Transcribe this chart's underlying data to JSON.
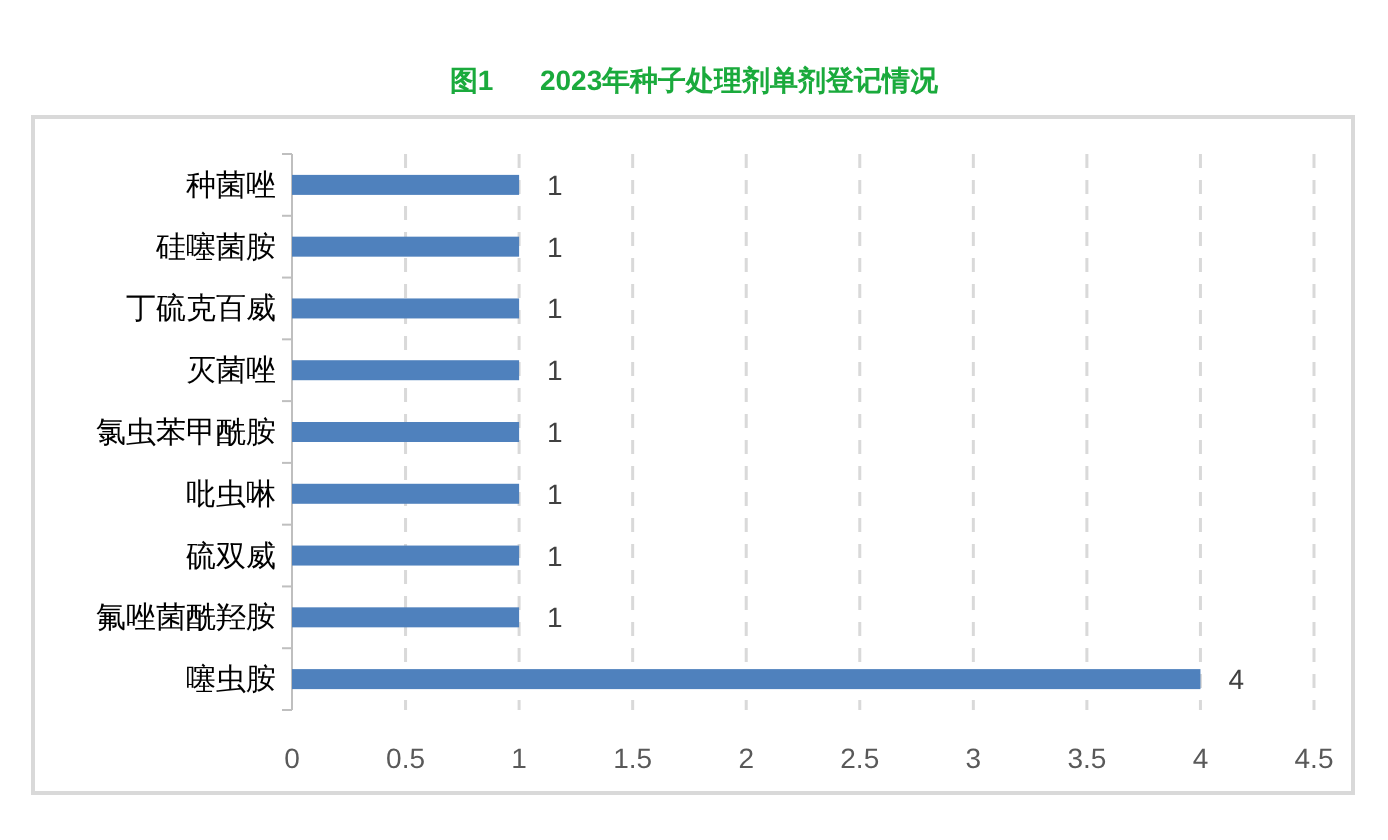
{
  "chart_data": {
    "type": "bar",
    "title": "图1      2023年种子处理剂单剂登记情况",
    "orientation": "horizontal",
    "categories": [
      "种菌唑",
      "硅噻菌胺",
      "丁硫克百威",
      "灭菌唑",
      "氯虫苯甲酰胺",
      "吡虫啉",
      "硫双威",
      "氟唑菌酰羟胺",
      "噻虫胺"
    ],
    "values": [
      1,
      1,
      1,
      1,
      1,
      1,
      1,
      1,
      4
    ],
    "color": "#4f81bd",
    "xlim": [
      0,
      4.5
    ],
    "xticks": [
      0,
      0.5,
      1,
      1.5,
      2,
      2.5,
      3,
      3.5,
      4,
      4.5
    ],
    "grid": "x",
    "data_labels": true
  }
}
